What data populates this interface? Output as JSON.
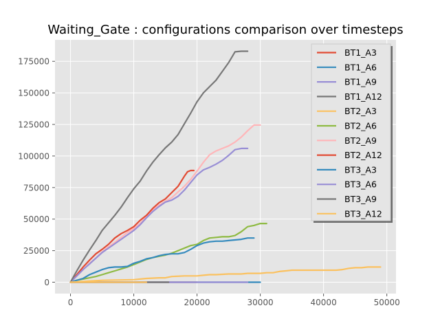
{
  "chart_data": {
    "type": "line",
    "title": "Waiting_Gate : configurations comparison over timesteps",
    "xlabel": "",
    "ylabel": "",
    "xlim": [
      -2450,
      51450
    ],
    "ylim": [
      -9000,
      192000
    ],
    "xticks": [
      0,
      10000,
      20000,
      30000,
      40000,
      50000
    ],
    "xtick_labels": [
      "0",
      "10000",
      "20000",
      "30000",
      "40000",
      "50000"
    ],
    "yticks": [
      0,
      25000,
      50000,
      75000,
      100000,
      125000,
      150000,
      175000
    ],
    "ytick_labels": [
      "0",
      "25000",
      "50000",
      "75000",
      "100000",
      "125000",
      "150000",
      "175000"
    ],
    "grid": true,
    "legend_position": "upper-right",
    "style": "ggplot",
    "series": [
      {
        "name": "BT1_A3",
        "color": "#E24A33",
        "x": [
          0,
          20000
        ],
        "y": [
          0,
          0
        ]
      },
      {
        "name": "BT1_A6",
        "color": "#348ABD",
        "x": [
          0,
          30000
        ],
        "y": [
          0,
          0
        ]
      },
      {
        "name": "BT1_A9",
        "color": "#988ED5",
        "x": [
          0,
          28000
        ],
        "y": [
          0,
          0
        ]
      },
      {
        "name": "BT1_A12",
        "color": "#777777",
        "x": [
          0,
          15500
        ],
        "y": [
          0,
          0
        ]
      },
      {
        "name": "BT2_A3",
        "color": "#FBC15E",
        "x": [
          0,
          12000
        ],
        "y": [
          0,
          0
        ]
      },
      {
        "name": "BT2_A6",
        "color": "#8EBA42",
        "x": [
          0,
          1000,
          2000,
          3000,
          4000,
          5000,
          6000,
          7000,
          8000,
          9000,
          10000,
          11000,
          12000,
          13000,
          14000,
          15000,
          16000,
          17000,
          18000,
          19000,
          20000,
          21000,
          22000,
          23000,
          24000,
          25000,
          26000,
          27000,
          28000,
          29000,
          30000,
          31000
        ],
        "y": [
          0,
          1500,
          2500,
          3500,
          4500,
          6000,
          7500,
          9000,
          10500,
          12000,
          14000,
          16000,
          18000,
          19500,
          20500,
          21500,
          23000,
          25000,
          27000,
          29000,
          30000,
          33000,
          35000,
          35500,
          36000,
          36000,
          37000,
          40000,
          44000,
          45000,
          46500,
          46500
        ]
      },
      {
        "name": "BT2_A9",
        "color": "#FFB5B8",
        "x": [
          0,
          1000,
          2000,
          3000,
          4000,
          5000,
          6000,
          7000,
          8000,
          9000,
          10000,
          11000,
          12000,
          13000,
          14000,
          15000,
          16000,
          17000,
          18000,
          19000,
          20000,
          21000,
          22000,
          23000,
          24000,
          25000,
          26000,
          27000,
          28000,
          29000,
          30000
        ],
        "y": [
          0,
          5000,
          10000,
          15000,
          19000,
          24000,
          28000,
          31500,
          35500,
          39500,
          42500,
          46500,
          52000,
          57000,
          61000,
          64000,
          67000,
          71500,
          76000,
          81500,
          88000,
          95000,
          101000,
          104000,
          106000,
          108000,
          111000,
          115000,
          120000,
          124500,
          124500
        ]
      },
      {
        "name": "BT2_A12",
        "color": "#E24A33",
        "x": [
          0,
          1000,
          2000,
          3000,
          4000,
          5000,
          6000,
          7000,
          8000,
          9000,
          10000,
          11000,
          12000,
          13000,
          14000,
          15000,
          16000,
          17000,
          18000,
          18500,
          19000,
          19500
        ],
        "y": [
          0,
          6000,
          12000,
          17500,
          22500,
          26000,
          30000,
          35000,
          38500,
          41000,
          44000,
          49000,
          53000,
          58500,
          63000,
          66000,
          71000,
          76000,
          84000,
          87500,
          88500,
          88500
        ]
      },
      {
        "name": "BT3_A3",
        "color": "#348ABD",
        "x": [
          0,
          1000,
          2000,
          3000,
          4000,
          5000,
          6000,
          7000,
          8000,
          9000,
          10000,
          11000,
          12000,
          13000,
          14000,
          15000,
          16000,
          17000,
          18000,
          19000,
          20000,
          21000,
          22000,
          23000,
          24000,
          25000,
          26000,
          27000,
          28000,
          29000
        ],
        "y": [
          0,
          1500,
          3000,
          6000,
          8000,
          10000,
          11500,
          12000,
          12000,
          12500,
          15000,
          16500,
          18500,
          19500,
          21000,
          22000,
          22500,
          22500,
          23500,
          26000,
          29000,
          31000,
          32000,
          32500,
          32500,
          33000,
          33500,
          34000,
          35000,
          35000
        ]
      },
      {
        "name": "BT3_A6",
        "color": "#988ED5",
        "x": [
          0,
          1000,
          2000,
          3000,
          4000,
          5000,
          6000,
          7000,
          8000,
          9000,
          10000,
          11000,
          12000,
          13000,
          14000,
          15000,
          16000,
          17000,
          18000,
          19000,
          20000,
          21000,
          22000,
          23000,
          24000,
          25000,
          26000,
          27000,
          28000
        ],
        "y": [
          0,
          5000,
          10000,
          14500,
          19000,
          23500,
          27000,
          30500,
          34000,
          37500,
          41000,
          45500,
          51000,
          56000,
          60000,
          63500,
          65000,
          68000,
          73000,
          79000,
          85000,
          89000,
          91000,
          93500,
          96500,
          100500,
          105000,
          106000,
          106000
        ]
      },
      {
        "name": "BT3_A9",
        "color": "#777777",
        "x": [
          0,
          1000,
          2000,
          3000,
          4000,
          5000,
          6000,
          7000,
          8000,
          9000,
          10000,
          11000,
          12000,
          13000,
          14000,
          15000,
          16000,
          17000,
          18000,
          19000,
          20000,
          21000,
          22000,
          23000,
          24000,
          25000,
          26000,
          27000,
          28000
        ],
        "y": [
          0,
          9000,
          17500,
          25500,
          33000,
          41000,
          47000,
          53000,
          59500,
          67000,
          74000,
          80000,
          88000,
          95000,
          101000,
          106500,
          111000,
          117000,
          125500,
          134000,
          143000,
          150000,
          155000,
          160000,
          167000,
          174000,
          182500,
          183000,
          183000
        ]
      },
      {
        "name": "BT3_A12",
        "color": "#FBC15E",
        "x": [
          0,
          5000,
          10000,
          12000,
          14000,
          15000,
          16000,
          18000,
          20000,
          21000,
          22000,
          23000,
          25000,
          27000,
          28000,
          30000,
          31000,
          32000,
          33000,
          34000,
          35000,
          37000,
          40000,
          42000,
          43000,
          44000,
          45000,
          46000,
          47000,
          48000,
          49000
        ],
        "y": [
          0,
          1500,
          2000,
          3000,
          3500,
          3500,
          4500,
          5000,
          5000,
          5500,
          6000,
          6000,
          6500,
          6500,
          7000,
          7000,
          7500,
          7500,
          8500,
          9000,
          9500,
          9500,
          9500,
          9500,
          10000,
          11000,
          11500,
          11500,
          12000,
          12000,
          12000
        ]
      }
    ]
  }
}
